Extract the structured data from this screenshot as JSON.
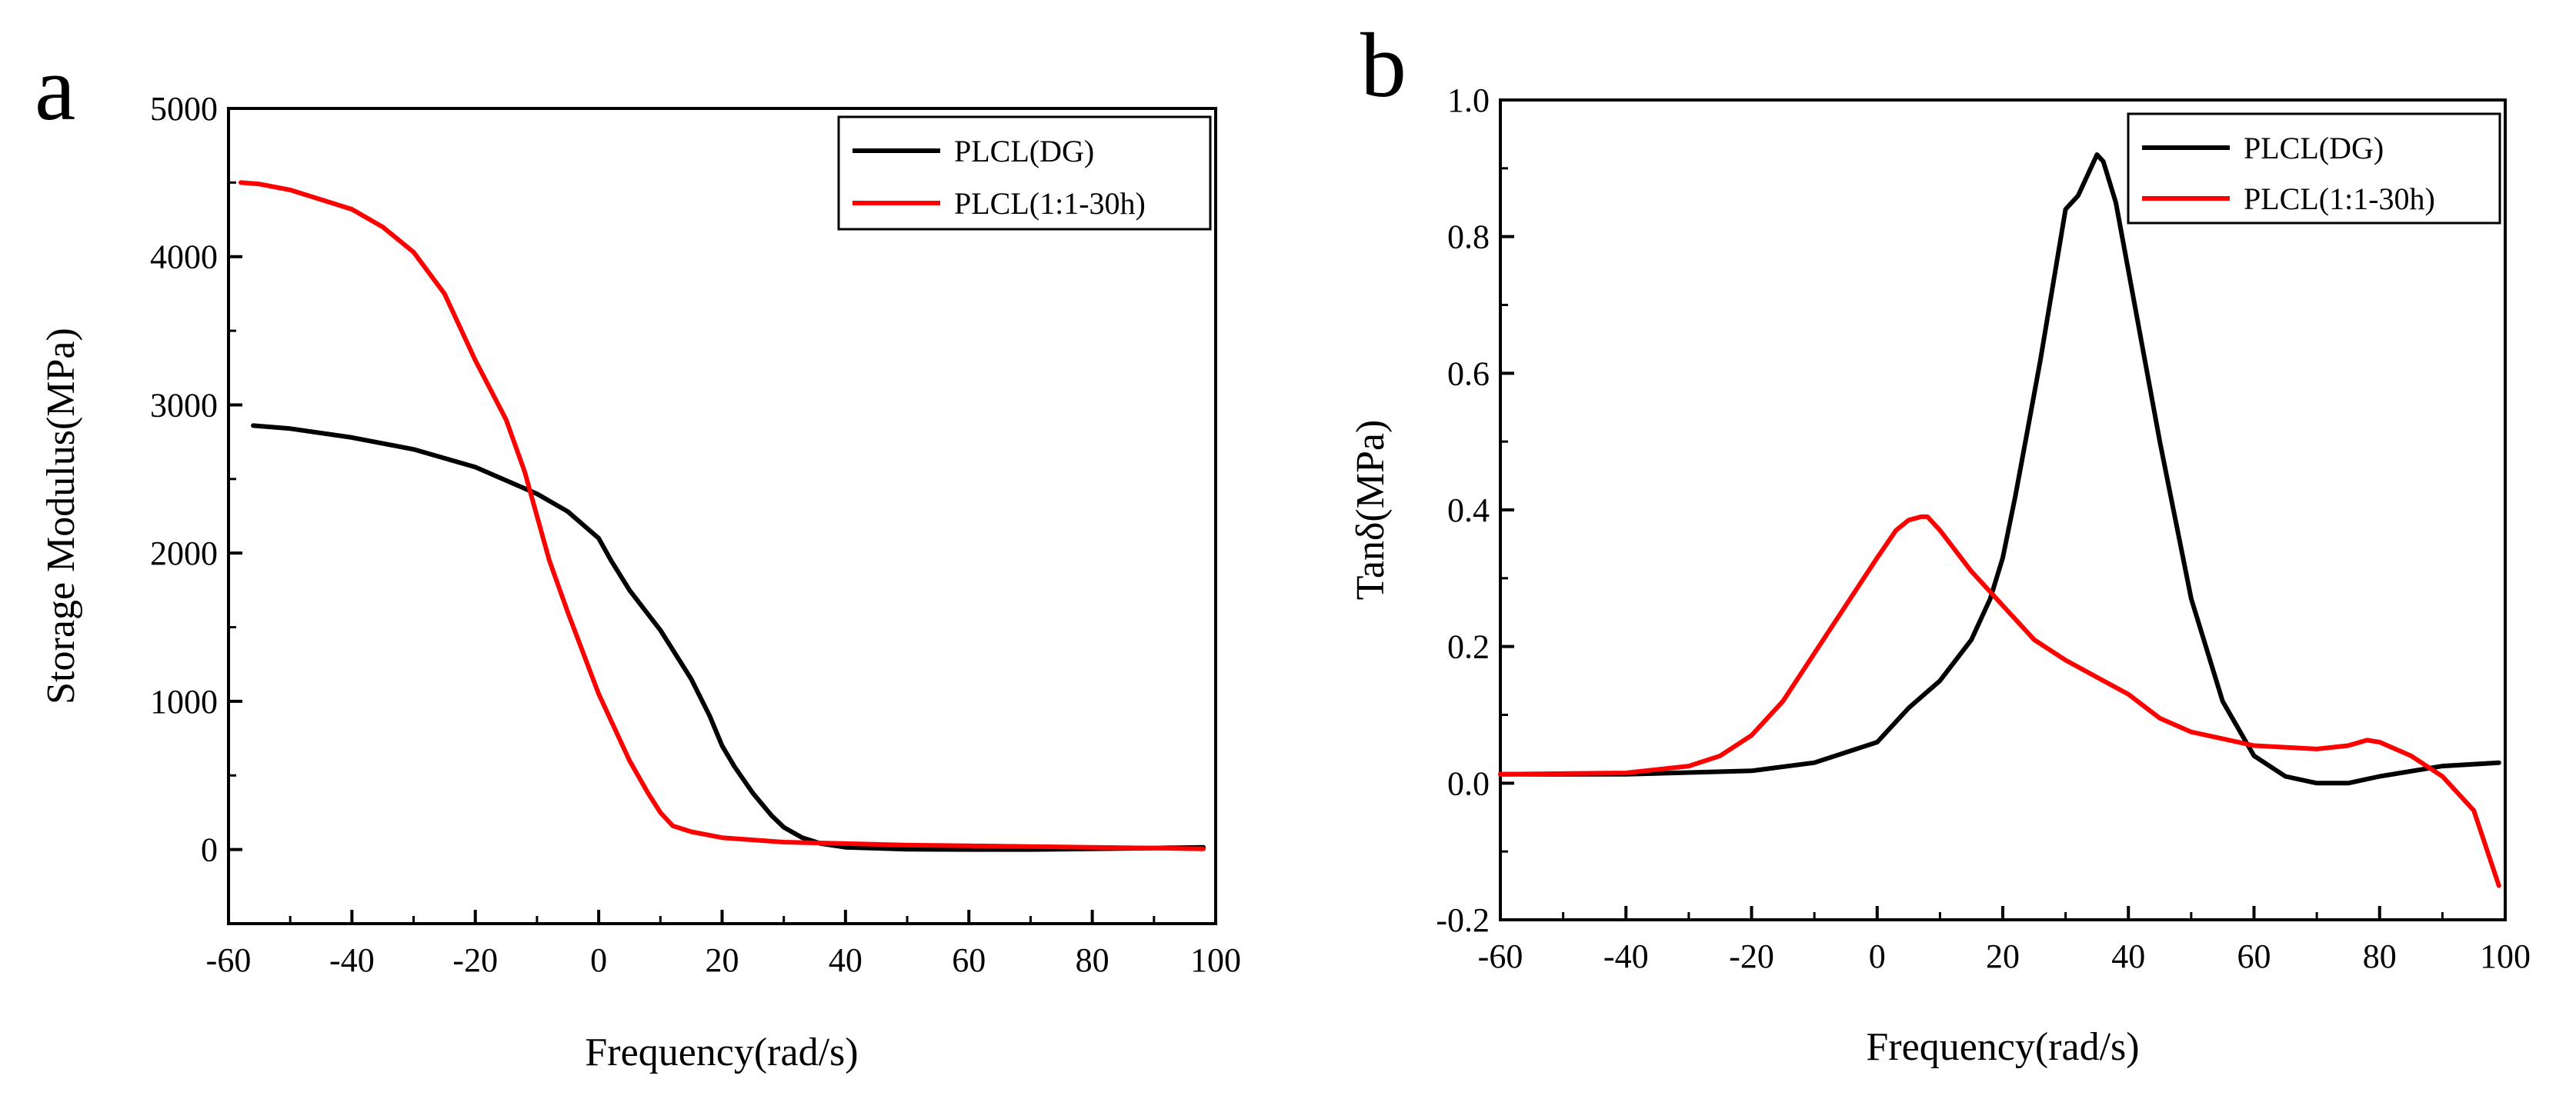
{
  "chart_data": [
    {
      "panel": "a",
      "type": "line",
      "title": "",
      "xlabel": "Frequency(rad/s)",
      "ylabel": "Storage Modulus(MPa)",
      "xlim": [
        -60,
        100
      ],
      "ylim": [
        -500,
        5000
      ],
      "xticks": [
        -60,
        -40,
        -20,
        0,
        20,
        40,
        60,
        80,
        100
      ],
      "yticks": [
        0,
        1000,
        2000,
        3000,
        4000,
        5000
      ],
      "legend_position": "top-right",
      "series": [
        {
          "name": "PLCL(DG)",
          "color": "#000000",
          "x": [
            -56,
            -50,
            -40,
            -30,
            -20,
            -10,
            -5,
            0,
            2,
            5,
            10,
            15,
            18,
            20,
            22,
            25,
            28,
            30,
            33,
            36,
            40,
            50,
            60,
            70,
            80,
            90,
            98
          ],
          "y": [
            2860,
            2840,
            2780,
            2700,
            2580,
            2400,
            2280,
            2100,
            1950,
            1750,
            1480,
            1150,
            900,
            700,
            560,
            380,
            230,
            150,
            80,
            40,
            15,
            2,
            0,
            0,
            5,
            10,
            15
          ]
        },
        {
          "name": "PLCL(1:1-30h)",
          "color": "#ff0000",
          "x": [
            -58,
            -55,
            -50,
            -40,
            -35,
            -30,
            -25,
            -20,
            -15,
            -12,
            -10,
            -8,
            -5,
            0,
            5,
            8,
            10,
            12,
            15,
            20,
            30,
            40,
            50,
            60,
            70,
            80,
            90,
            98
          ],
          "y": [
            4500,
            4490,
            4450,
            4320,
            4200,
            4030,
            3750,
            3300,
            2900,
            2550,
            2250,
            1950,
            1600,
            1050,
            600,
            380,
            250,
            160,
            120,
            80,
            50,
            40,
            30,
            25,
            20,
            15,
            10,
            5
          ]
        }
      ]
    },
    {
      "panel": "b",
      "type": "line",
      "title": "",
      "xlabel": "Frequency(rad/s)",
      "ylabel": "Tanδ(MPa)",
      "xlim": [
        -60,
        100
      ],
      "ylim": [
        -0.2,
        1.0
      ],
      "xticks": [
        -60,
        -40,
        -20,
        0,
        20,
        40,
        60,
        80,
        100
      ],
      "yticks": [
        -0.2,
        0.0,
        0.2,
        0.4,
        0.6,
        0.8,
        1.0
      ],
      "legend_position": "top-right",
      "series": [
        {
          "name": "PLCL(DG)",
          "color": "#000000",
          "x": [
            -60,
            -40,
            -20,
            -10,
            0,
            5,
            10,
            15,
            18,
            20,
            22,
            24,
            26,
            28,
            30,
            32,
            34,
            35,
            36,
            38,
            40,
            45,
            50,
            55,
            60,
            65,
            70,
            75,
            80,
            90,
            99
          ],
          "y": [
            0.013,
            0.013,
            0.018,
            0.03,
            0.06,
            0.11,
            0.15,
            0.21,
            0.27,
            0.33,
            0.42,
            0.52,
            0.62,
            0.73,
            0.84,
            0.86,
            0.9,
            0.92,
            0.91,
            0.85,
            0.75,
            0.5,
            0.27,
            0.12,
            0.04,
            0.01,
            0.0,
            0.0,
            0.01,
            0.025,
            0.03
          ]
        },
        {
          "name": "PLCL(1:1-30h)",
          "color": "#ff0000",
          "x": [
            -60,
            -40,
            -30,
            -25,
            -20,
            -15,
            -10,
            -5,
            0,
            3,
            5,
            7,
            8,
            10,
            15,
            20,
            25,
            30,
            35,
            40,
            45,
            50,
            60,
            70,
            75,
            78,
            80,
            85,
            90,
            95,
            99
          ],
          "y": [
            0.013,
            0.015,
            0.025,
            0.04,
            0.07,
            0.12,
            0.19,
            0.26,
            0.33,
            0.37,
            0.385,
            0.39,
            0.39,
            0.37,
            0.31,
            0.26,
            0.21,
            0.18,
            0.155,
            0.13,
            0.095,
            0.075,
            0.055,
            0.05,
            0.055,
            0.063,
            0.06,
            0.04,
            0.01,
            -0.04,
            -0.15
          ]
        }
      ]
    }
  ]
}
